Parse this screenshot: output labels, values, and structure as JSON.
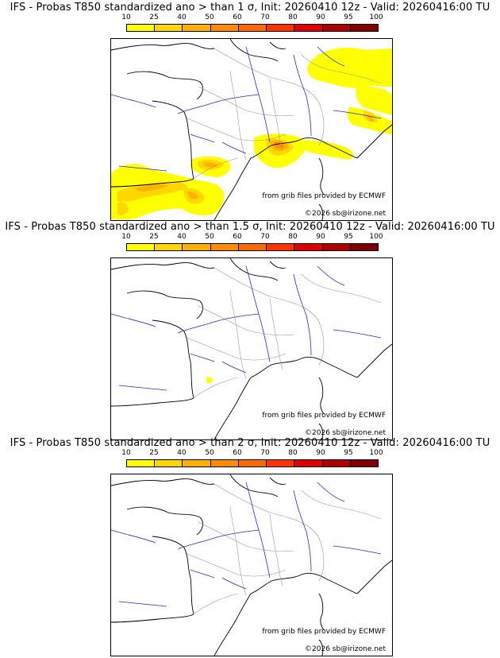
{
  "panels": [
    {
      "title": "IFS - Probas T850  standardized ano > than 1 σ, Init: 20260410 12z - Valid: 20260416:00 TU"
    },
    {
      "title": "IFS - Probas T850  standardized ano > than 1.5 σ, Init: 20260410 12z - Valid: 20260416:00 TU"
    },
    {
      "title": "IFS - Probas T850  standardized ano > than 2 σ, Init: 20260410 12z - Valid: 20260416:00 TU"
    }
  ],
  "legend": {
    "ticks": [
      "10",
      "25",
      "40",
      "50",
      "60",
      "70",
      "80",
      "90",
      "95",
      "100"
    ],
    "colors": [
      "#ffff00",
      "#ffd700",
      "#ffb000",
      "#ff8c00",
      "#ff6a00",
      "#ff3300",
      "#e00000",
      "#b00000",
      "#800000"
    ]
  },
  "credits": {
    "source": "from grib files provided by ECMWF",
    "copyright": "©2026 sb@irizone.net"
  }
}
